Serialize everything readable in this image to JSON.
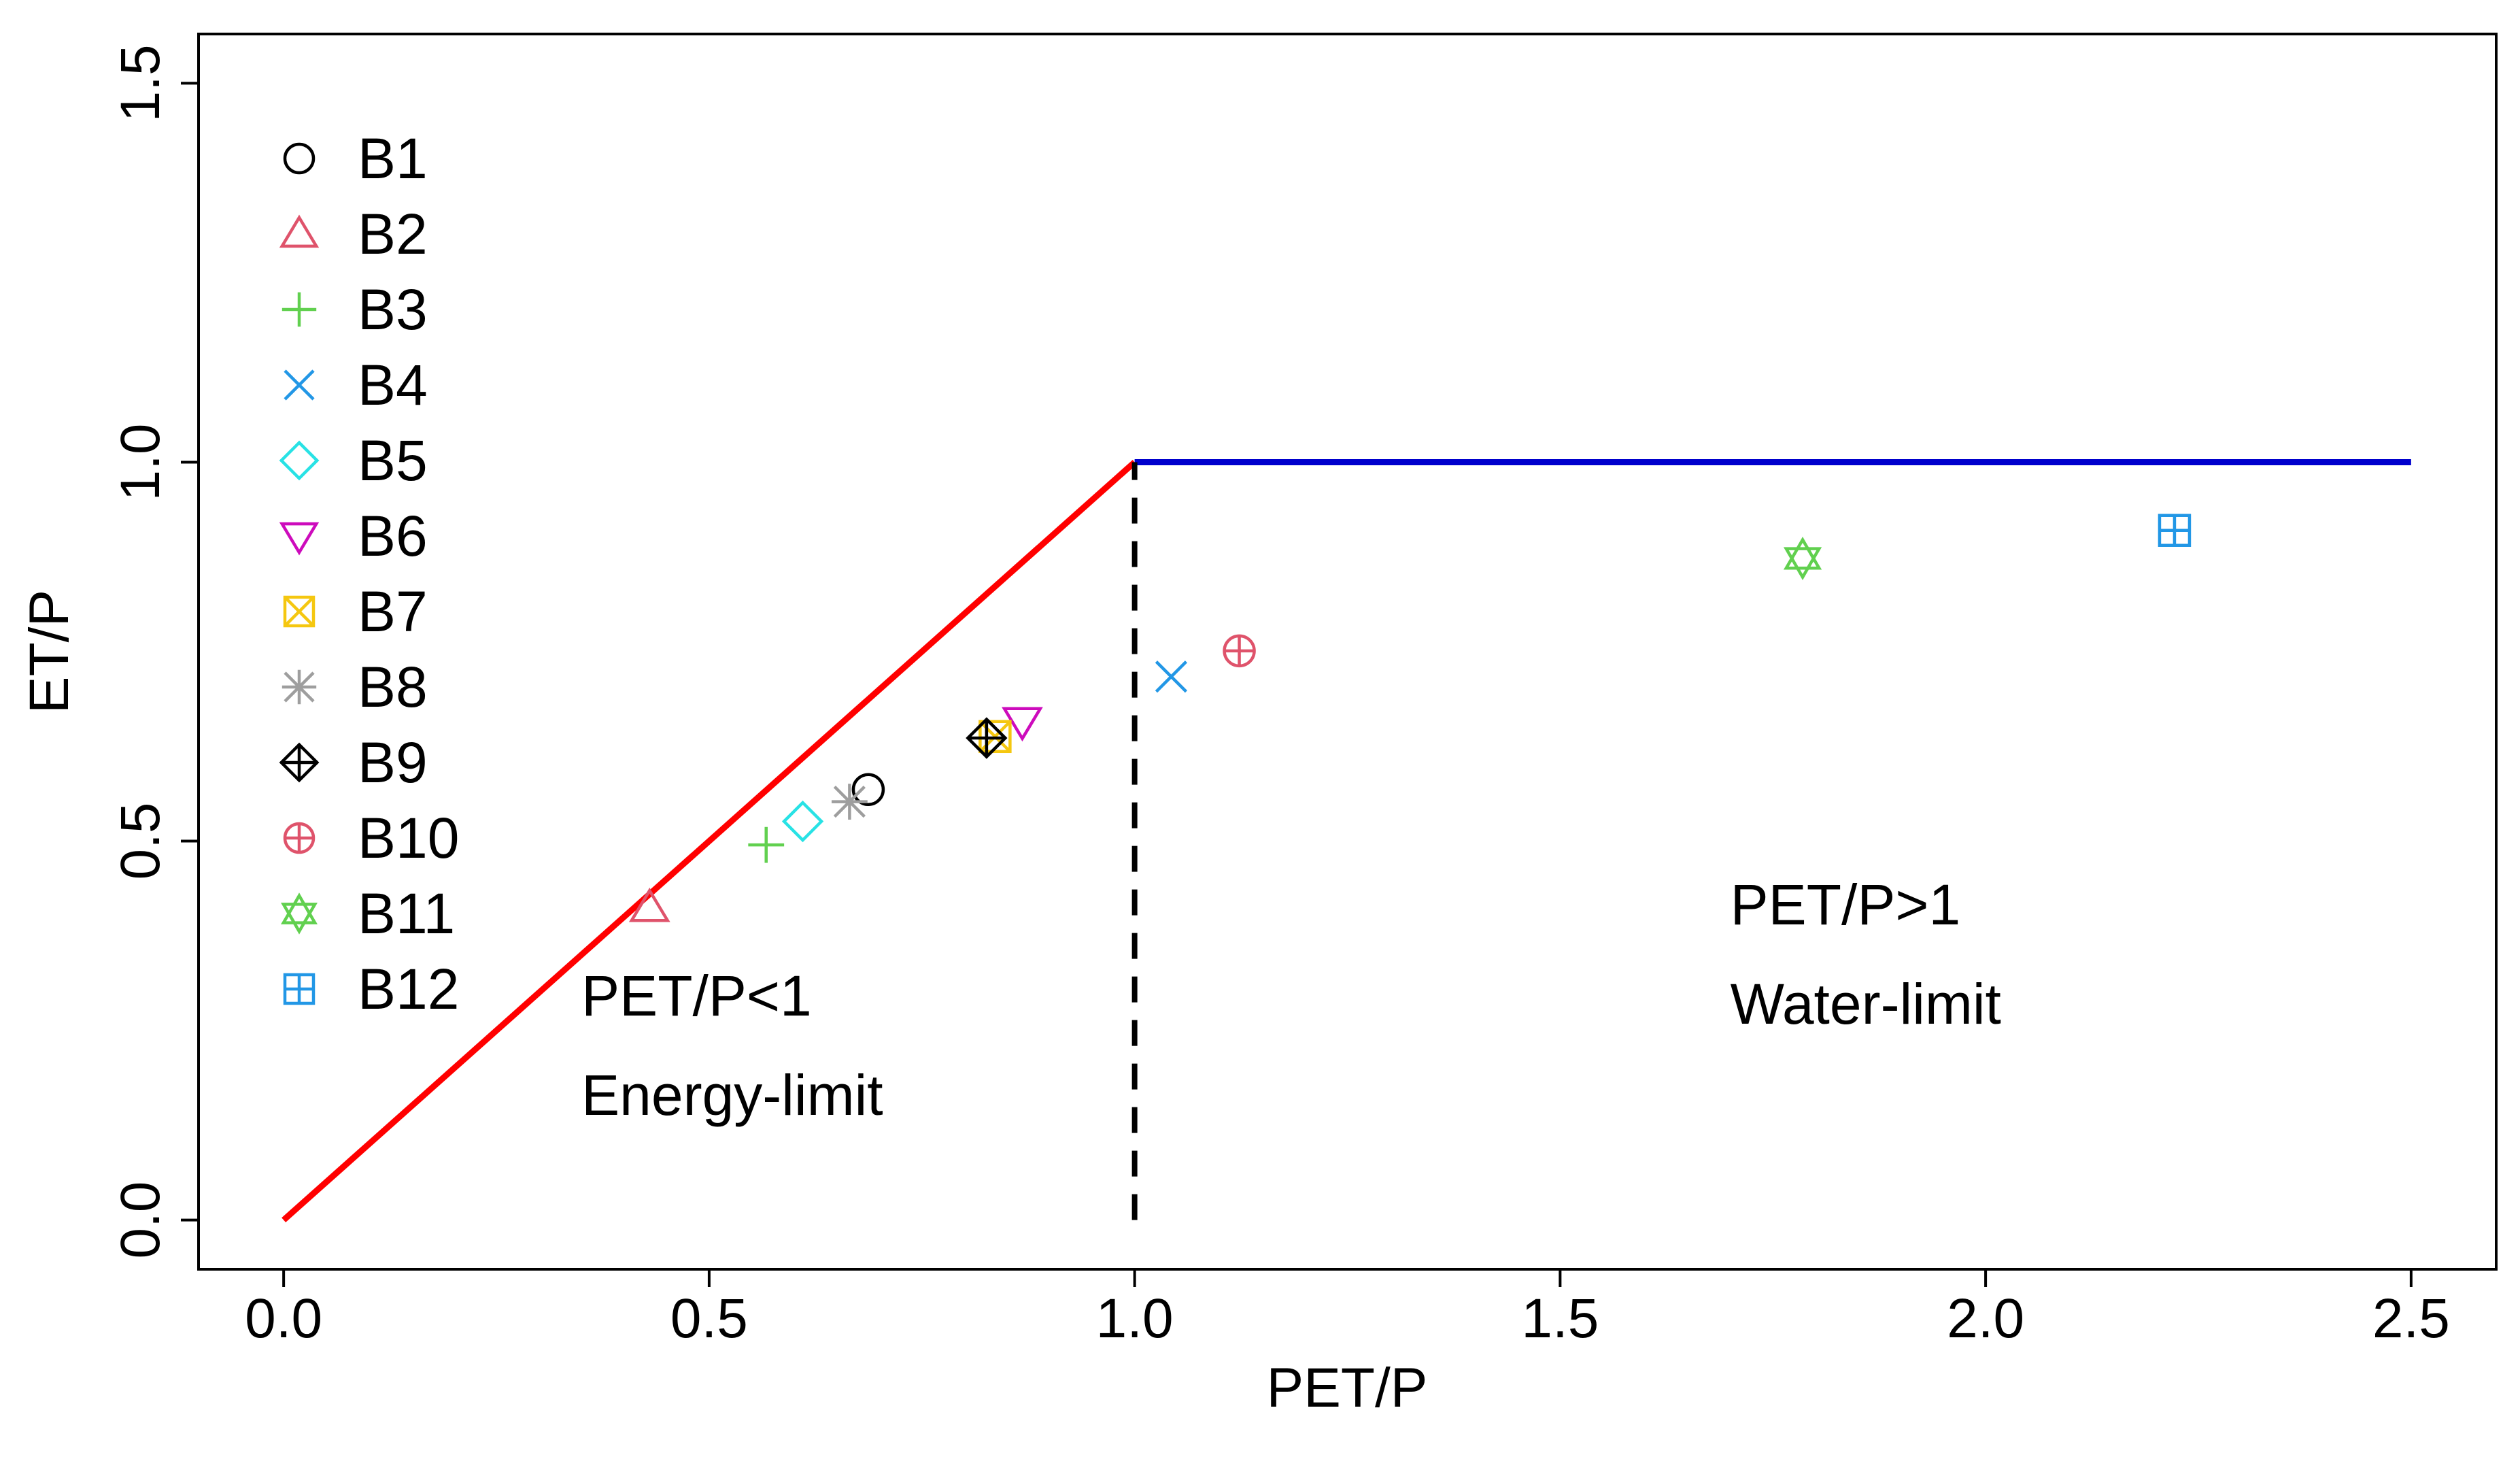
{
  "chart_data": {
    "type": "scatter",
    "title": "",
    "xlabel": "PET/P",
    "ylabel": "ET/P",
    "xlim": [
      -0.1,
      2.6
    ],
    "ylim": [
      -0.065,
      1.565
    ],
    "xticks": [
      "0.0",
      "0.5",
      "1.0",
      "1.5",
      "2.0",
      "2.5"
    ],
    "xtick_values": [
      0,
      0.5,
      1.0,
      1.5,
      2.0,
      2.5
    ],
    "yticks": [
      "0.0",
      "0.5",
      "1.0",
      "1.5"
    ],
    "ytick_values": [
      0,
      0.5,
      1.0,
      1.5
    ],
    "grid": false,
    "legend_position": "top-left",
    "lines": [
      {
        "name": "energy-limit-line",
        "color": "#ff0000",
        "style": "solid",
        "x": [
          0,
          1
        ],
        "y": [
          0,
          1
        ]
      },
      {
        "name": "water-limit-line",
        "color": "#0000cd",
        "style": "solid",
        "x": [
          1,
          2.5
        ],
        "y": [
          1,
          1
        ]
      },
      {
        "name": "divider-line",
        "color": "#000000",
        "style": "dashed",
        "x": [
          1,
          1
        ],
        "y": [
          0,
          1
        ]
      }
    ],
    "series": [
      {
        "name": "B1",
        "marker": "circle",
        "color": "#000000",
        "x": 0.687,
        "y": 0.568
      },
      {
        "name": "B2",
        "marker": "triangle-up",
        "color": "#df536b",
        "x": 0.43,
        "y": 0.412
      },
      {
        "name": "B3",
        "marker": "plus",
        "color": "#61d04f",
        "x": 0.567,
        "y": 0.495
      },
      {
        "name": "B4",
        "marker": "x",
        "color": "#2297e6",
        "x": 1.043,
        "y": 0.717
      },
      {
        "name": "B5",
        "marker": "diamond",
        "color": "#28e2e5",
        "x": 0.61,
        "y": 0.526
      },
      {
        "name": "B6",
        "marker": "triangle-down",
        "color": "#cd0bbc",
        "x": 0.868,
        "y": 0.658
      },
      {
        "name": "B7",
        "marker": "square-x",
        "color": "#f5c710",
        "x": 0.836,
        "y": 0.638
      },
      {
        "name": "B8",
        "marker": "asterisk",
        "color": "#9e9e9e",
        "x": 0.665,
        "y": 0.552
      },
      {
        "name": "B9",
        "marker": "diamond-plus",
        "color": "#000000",
        "x": 0.826,
        "y": 0.636
      },
      {
        "name": "B10",
        "marker": "circle-plus",
        "color": "#df536b",
        "x": 1.123,
        "y": 0.751
      },
      {
        "name": "B11",
        "marker": "star-of-david",
        "color": "#61d04f",
        "x": 1.785,
        "y": 0.873
      },
      {
        "name": "B12",
        "marker": "square-plus",
        "color": "#2297e6",
        "x": 2.222,
        "y": 0.91
      }
    ],
    "annotations": [
      {
        "id": "energy",
        "lines": [
          "PET/P<1",
          "Energy-limit"
        ],
        "x": 0.35,
        "y": 0.27
      },
      {
        "id": "water",
        "lines": [
          "PET/P>1",
          "Water-limit"
        ],
        "x": 1.7,
        "y": 0.39
      }
    ]
  }
}
